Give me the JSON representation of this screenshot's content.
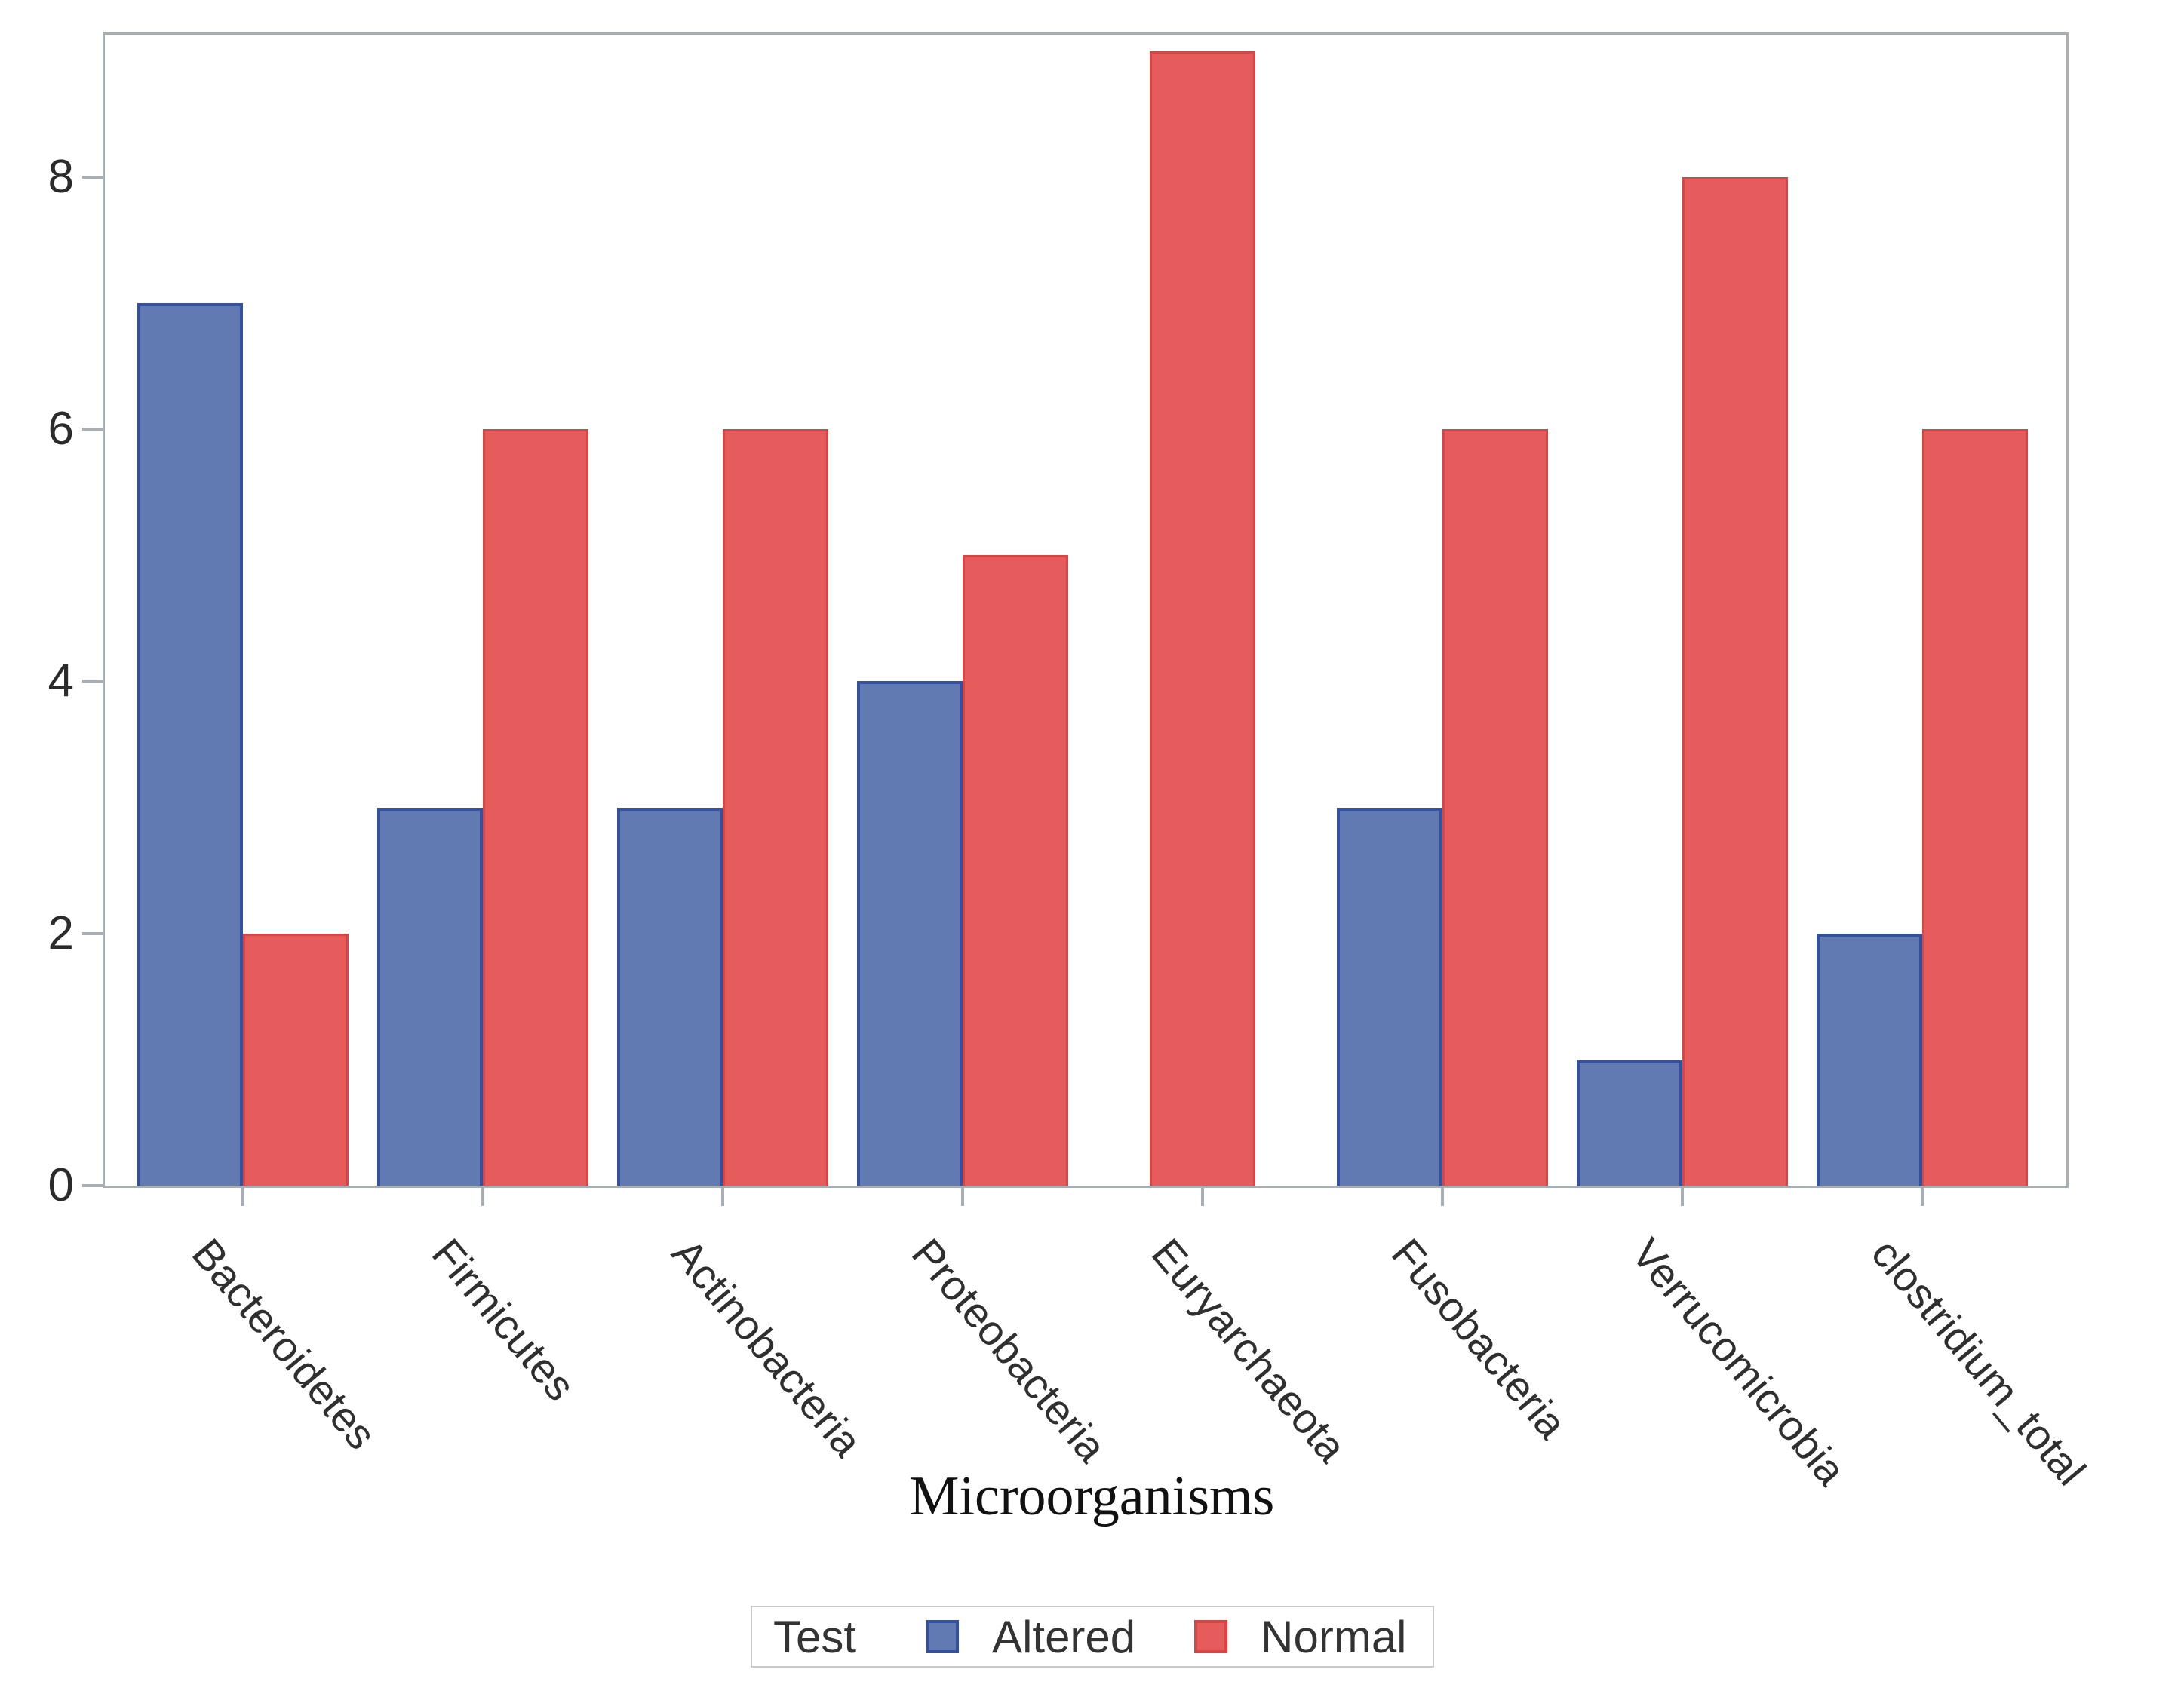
{
  "chart_data": {
    "type": "bar",
    "categories": [
      "Bacteroidetes",
      "Firmicutes",
      "Actinobacteria",
      "Proteobacteria",
      "Euryarchaeota",
      "Fusobacteria",
      "Verrucomicrobia",
      "clostridium_total"
    ],
    "series": [
      {
        "name": "Altered",
        "values": [
          7,
          3,
          3,
          4,
          0,
          3,
          1,
          2
        ],
        "fill": "#617bb2",
        "border": "#33519e"
      },
      {
        "name": "Normal",
        "values": [
          2,
          6,
          6,
          5,
          9,
          6,
          8,
          6
        ],
        "fill": "#e65c5c",
        "border": "#d74545"
      }
    ],
    "title": "",
    "xlabel": "Microorganisms",
    "ylabel": "",
    "ylim": [
      0,
      9.13
    ],
    "yticks": [
      0,
      2,
      4,
      6,
      8
    ],
    "grid": false,
    "legend": {
      "title": "Test",
      "position": "bottom"
    }
  },
  "colors": {
    "frame": "#a8afb4",
    "tick_text": "#2b2b2b",
    "label_text": "#2f2f2f"
  }
}
